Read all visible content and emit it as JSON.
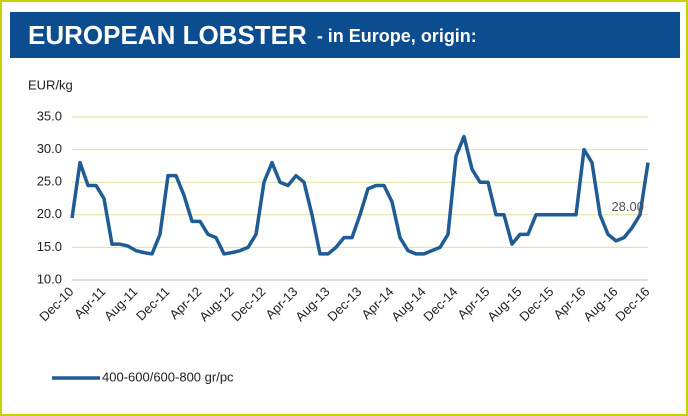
{
  "chart_data": {
    "type": "line",
    "title": "EUROPEAN LOBSTER",
    "subtitle": "- in Europe, origin:",
    "y_label": "EUR/kg",
    "categories": [
      "Dec-10",
      null,
      null,
      null,
      "Apr-11",
      null,
      null,
      null,
      "Aug-11",
      null,
      null,
      null,
      "Dec-11",
      null,
      null,
      null,
      "Apr-12",
      null,
      null,
      null,
      "Aug-12",
      null,
      null,
      null,
      "Dec-12",
      null,
      null,
      null,
      "Apr-13",
      null,
      null,
      null,
      "Aug-13",
      null,
      null,
      null,
      "Dec-13",
      null,
      null,
      null,
      "Apr-14",
      null,
      null,
      null,
      "Aug-14",
      null,
      null,
      null,
      "Dec-14",
      null,
      null,
      null,
      "Apr-15",
      null,
      null,
      null,
      "Aug-15",
      null,
      null,
      null,
      "Dec-15",
      null,
      null,
      null,
      "Apr-16",
      null,
      null,
      null,
      "Aug-16",
      null,
      null,
      null,
      "Dec-16"
    ],
    "series": [
      {
        "name": "400-600/600-800 gr/pc",
        "color": "#1f5b94",
        "values": [
          19.5,
          28,
          24.5,
          24.5,
          22.5,
          15.5,
          15.5,
          15.2,
          14.5,
          14.2,
          14,
          17,
          26,
          26,
          23,
          19,
          19,
          17,
          16.5,
          14,
          14.2,
          14.5,
          15,
          17,
          25,
          28,
          25,
          24.5,
          26,
          25,
          20,
          14,
          14,
          15,
          16.5,
          16.5,
          20,
          24,
          24.5,
          24.5,
          22,
          16.5,
          14.5,
          14,
          14,
          14.5,
          15,
          17,
          29,
          32,
          27,
          25,
          25,
          20,
          20,
          15.5,
          17,
          17,
          20,
          20,
          20,
          20,
          20,
          20,
          30,
          28,
          20,
          17,
          16,
          16.5,
          18,
          20,
          28
        ],
        "value_labels": [
          null,
          null,
          null,
          null,
          null,
          null,
          null,
          null,
          null,
          null,
          null,
          null,
          null,
          null,
          null,
          null,
          null,
          null,
          null,
          null,
          null,
          null,
          null,
          null,
          null,
          null,
          null,
          null,
          null,
          null,
          null,
          null,
          null,
          null,
          null,
          null,
          null,
          null,
          null,
          null,
          null,
          null,
          null,
          null,
          null,
          null,
          null,
          null,
          null,
          null,
          null,
          null,
          null,
          null,
          null,
          null,
          null,
          null,
          null,
          null,
          null,
          null,
          null,
          null,
          null,
          null,
          null,
          null,
          null,
          null,
          null,
          null,
          "28.00"
        ]
      }
    ],
    "ylim": [
      10,
      35
    ],
    "yticks": [
      {
        "value": 10,
        "label": "10.0"
      },
      {
        "value": 15,
        "label": "15.0"
      },
      {
        "value": 20,
        "label": "20.0"
      },
      {
        "value": 25,
        "label": "25.0"
      },
      {
        "value": 30,
        "label": "30.0"
      },
      {
        "value": 35,
        "label": "35.0"
      }
    ],
    "grid": true,
    "legend": "bottom-left"
  }
}
